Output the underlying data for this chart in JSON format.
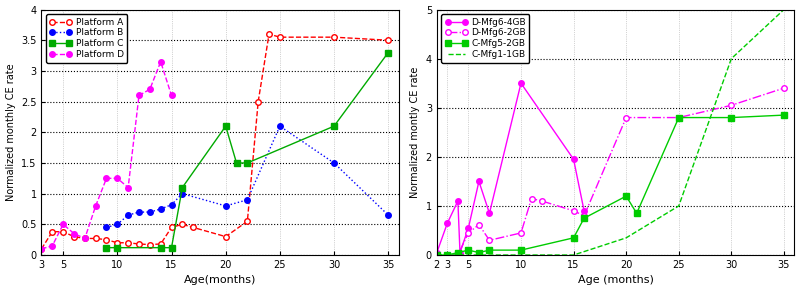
{
  "left": {
    "xlabel": "Age(months)",
    "ylabel": "Normalized monthly CE rate",
    "xlim": [
      3,
      36
    ],
    "ylim": [
      0,
      4
    ],
    "yticks": [
      0,
      0.5,
      1.0,
      1.5,
      2.0,
      2.5,
      3.0,
      3.5,
      4.0
    ],
    "xticks": [
      3,
      5,
      10,
      15,
      20,
      25,
      30,
      35
    ],
    "series": [
      {
        "label": "Platform A",
        "color": "#ff0000",
        "linestyle": "--",
        "marker": "o",
        "markerfacecolor": "white",
        "markersize": 4,
        "x": [
          3,
          4,
          5,
          6,
          7,
          8,
          9,
          10,
          11,
          12,
          13,
          14,
          15,
          16,
          17,
          20,
          22,
          23,
          24,
          25,
          30,
          35
        ],
        "y": [
          0.1,
          0.38,
          0.38,
          0.3,
          0.27,
          0.27,
          0.25,
          0.2,
          0.2,
          0.18,
          0.17,
          0.18,
          0.45,
          0.5,
          0.45,
          0.3,
          0.55,
          2.5,
          3.6,
          3.55,
          3.55,
          3.5
        ]
      },
      {
        "label": "Platform B",
        "color": "#0000ff",
        "linestyle": ":",
        "marker": "o",
        "markerfacecolor": "#0000ff",
        "markersize": 4,
        "x": [
          9,
          10,
          11,
          12,
          13,
          14,
          15,
          16,
          20,
          22,
          25,
          30,
          35
        ],
        "y": [
          0.45,
          0.5,
          0.65,
          0.7,
          0.7,
          0.75,
          0.82,
          1.0,
          0.8,
          0.9,
          2.1,
          1.5,
          0.65
        ]
      },
      {
        "label": "Platform C",
        "color": "#00aa00",
        "linestyle": "-",
        "marker": "s",
        "markerfacecolor": "#00aa00",
        "markersize": 4,
        "x": [
          9,
          10,
          14,
          15,
          16,
          20,
          21,
          22,
          30,
          35
        ],
        "y": [
          0.12,
          0.12,
          0.12,
          0.12,
          1.1,
          2.1,
          1.5,
          1.5,
          2.1,
          3.3
        ]
      },
      {
        "label": "Platform D",
        "color": "#ff00ff",
        "linestyle": "--",
        "marker": "o",
        "markerfacecolor": "#ff00ff",
        "markersize": 4,
        "x": [
          3,
          4,
          5,
          6,
          7,
          8,
          9,
          10,
          11,
          12,
          13,
          14,
          15
        ],
        "y": [
          0.1,
          0.15,
          0.5,
          0.35,
          0.27,
          0.8,
          1.25,
          1.25,
          1.1,
          2.6,
          2.7,
          3.15,
          2.6
        ]
      }
    ]
  },
  "right": {
    "xlabel": "Age (months)",
    "ylabel": "Normalized montly CE rate",
    "xlim": [
      2,
      36
    ],
    "ylim": [
      0,
      5
    ],
    "yticks": [
      0,
      1,
      2,
      3,
      4,
      5
    ],
    "xticks": [
      2,
      3,
      5,
      10,
      15,
      20,
      25,
      30,
      35
    ],
    "series": [
      {
        "label": "D-Mfg6-4GB",
        "color": "#ff00ff",
        "linestyle": "-",
        "marker": "o",
        "markerfacecolor": "#ff00ff",
        "markersize": 4,
        "x": [
          2,
          3,
          4,
          4.2,
          5,
          6,
          7,
          10,
          15,
          16
        ],
        "y": [
          0.05,
          0.65,
          1.1,
          0.05,
          0.55,
          1.5,
          0.85,
          3.5,
          1.95,
          0.9
        ]
      },
      {
        "label": "D-Mfg6-2GB",
        "color": "#ff00ff",
        "linestyle": "-.",
        "marker": "o",
        "markerfacecolor": "white",
        "markersize": 4,
        "x": [
          3,
          4,
          5,
          6,
          7,
          10,
          11,
          12,
          15,
          16,
          20,
          25,
          30,
          35
        ],
        "y": [
          0.0,
          0.0,
          0.45,
          0.62,
          0.3,
          0.45,
          1.15,
          1.1,
          0.9,
          0.8,
          2.8,
          2.8,
          3.05,
          3.4
        ]
      },
      {
        "label": "C-Mfg5-2GB",
        "color": "#00cc00",
        "linestyle": "-",
        "marker": "s",
        "markerfacecolor": "#00cc00",
        "markersize": 4,
        "x": [
          2,
          3,
          4,
          5,
          6,
          7,
          10,
          15,
          16,
          20,
          21,
          25,
          30,
          35
        ],
        "y": [
          0.0,
          0.0,
          0.05,
          0.1,
          0.05,
          0.1,
          0.1,
          0.35,
          0.75,
          1.2,
          0.85,
          2.8,
          2.8,
          2.85
        ]
      },
      {
        "label": "C-Mfg1-1GB",
        "color": "#00cc00",
        "linestyle": "--",
        "marker": null,
        "markerfacecolor": "none",
        "markersize": 4,
        "x": [
          2,
          3,
          4,
          5,
          10,
          15,
          20,
          25,
          30,
          35
        ],
        "y": [
          0.0,
          0.0,
          0.0,
          0.0,
          0.0,
          0.0,
          0.35,
          1.0,
          4.0,
          5.0
        ]
      }
    ]
  }
}
